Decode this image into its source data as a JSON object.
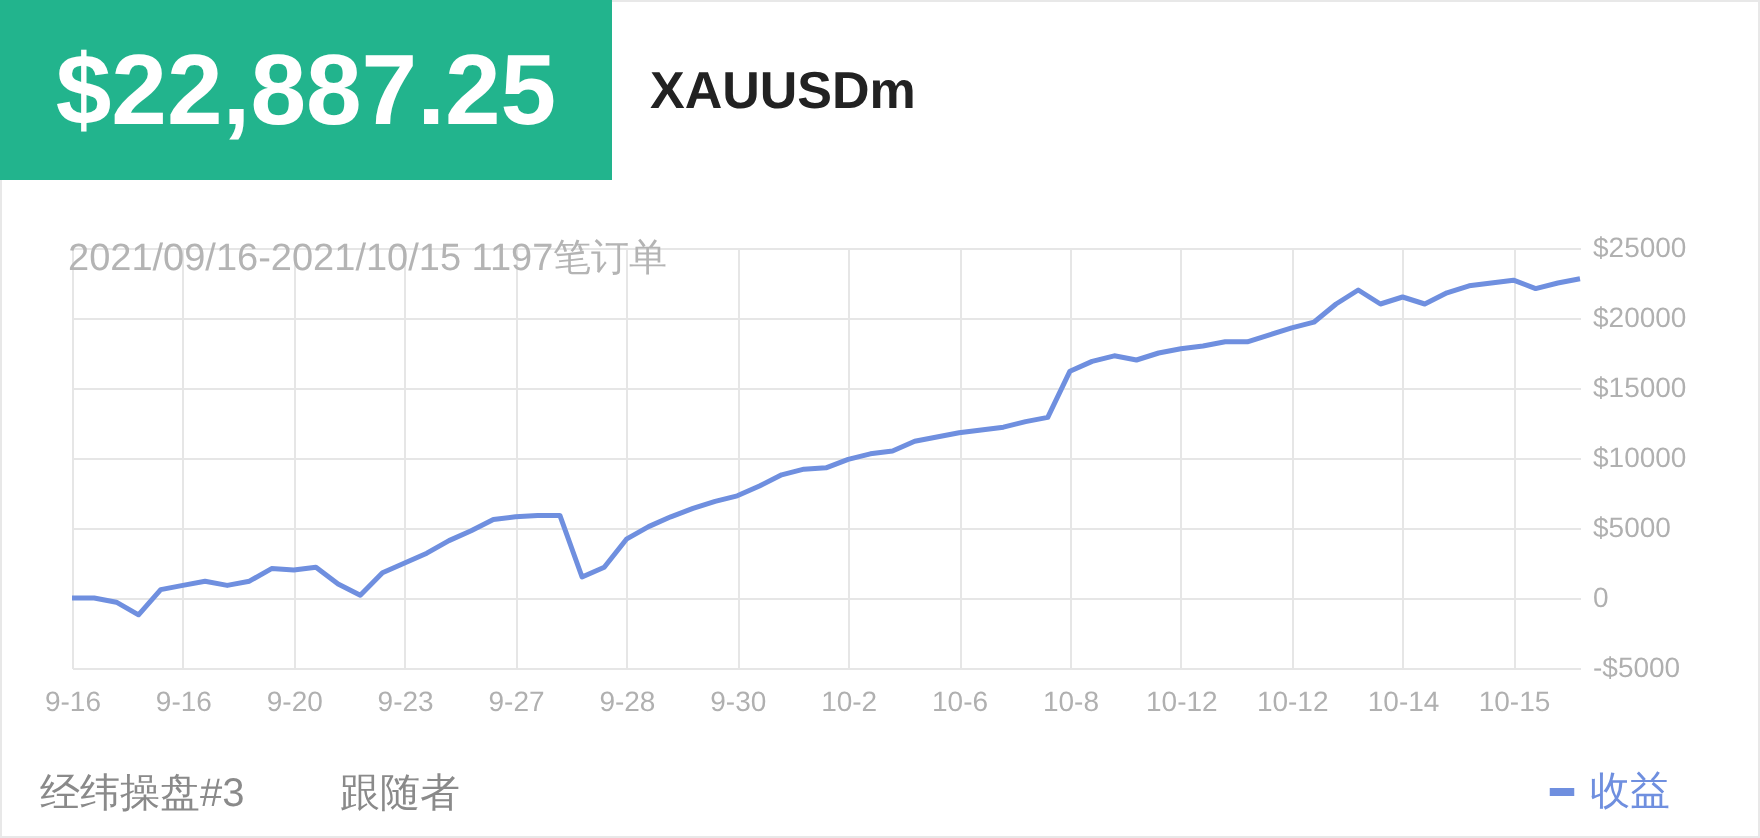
{
  "chart_data": {
    "type": "line",
    "title": "XAUUSDm",
    "subtitle": "2021/09/16-2021/10/15 1197笔订单",
    "annotations": [
      "$22,887.25",
      "经纬操盘#3",
      "跟随者"
    ],
    "categories": [
      "9-16",
      null,
      null,
      null,
      null,
      "9-16",
      null,
      null,
      null,
      null,
      "9-20",
      null,
      null,
      null,
      null,
      "9-23",
      null,
      null,
      null,
      null,
      "9-27",
      null,
      null,
      null,
      null,
      "9-28",
      null,
      null,
      null,
      null,
      "9-30",
      null,
      null,
      null,
      null,
      "10-2",
      null,
      null,
      null,
      null,
      "10-6",
      null,
      null,
      null,
      null,
      "10-8",
      null,
      null,
      null,
      null,
      "10-12",
      null,
      null,
      null,
      null,
      "10-12",
      null,
      null,
      null,
      null,
      "10-14",
      null,
      null,
      null,
      null,
      "10-15",
      null,
      null,
      null
    ],
    "series": [
      {
        "name": "收益",
        "color": "#6f8fdf",
        "values": [
          0,
          0,
          -300,
          -1200,
          600,
          900,
          1200,
          900,
          1200,
          2100,
          2000,
          2200,
          1000,
          200,
          1800,
          2500,
          3200,
          4100,
          4800,
          5600,
          5800,
          5900,
          5900,
          1500,
          2200,
          4200,
          5100,
          5800,
          6400,
          6900,
          7300,
          8000,
          8800,
          9200,
          9300,
          9900,
          10300,
          10500,
          11200,
          11500,
          11800,
          12000,
          12200,
          12600,
          12900,
          16200,
          16900,
          17300,
          17000,
          17500,
          17800,
          18000,
          18300,
          18300,
          18800,
          19300,
          19700,
          21000,
          22000,
          21000,
          21500,
          21000,
          21800,
          22300,
          22500,
          22700,
          22100,
          22500,
          22800
        ]
      }
    ],
    "ylim": [
      -5000,
      25000
    ],
    "yticks": [
      {
        "value": -5000,
        "label": "-$5000"
      },
      0,
      {
        "value": 5000,
        "label": "$5000"
      },
      {
        "value": 10000,
        "label": "$10000"
      },
      {
        "value": 15000,
        "label": "$15000"
      },
      {
        "value": 20000,
        "label": "$20000"
      },
      {
        "value": 25000,
        "label": "$25000"
      }
    ],
    "grid": true,
    "legend": "bottom right",
    "marker": "none",
    "line_style": "solid"
  }
}
